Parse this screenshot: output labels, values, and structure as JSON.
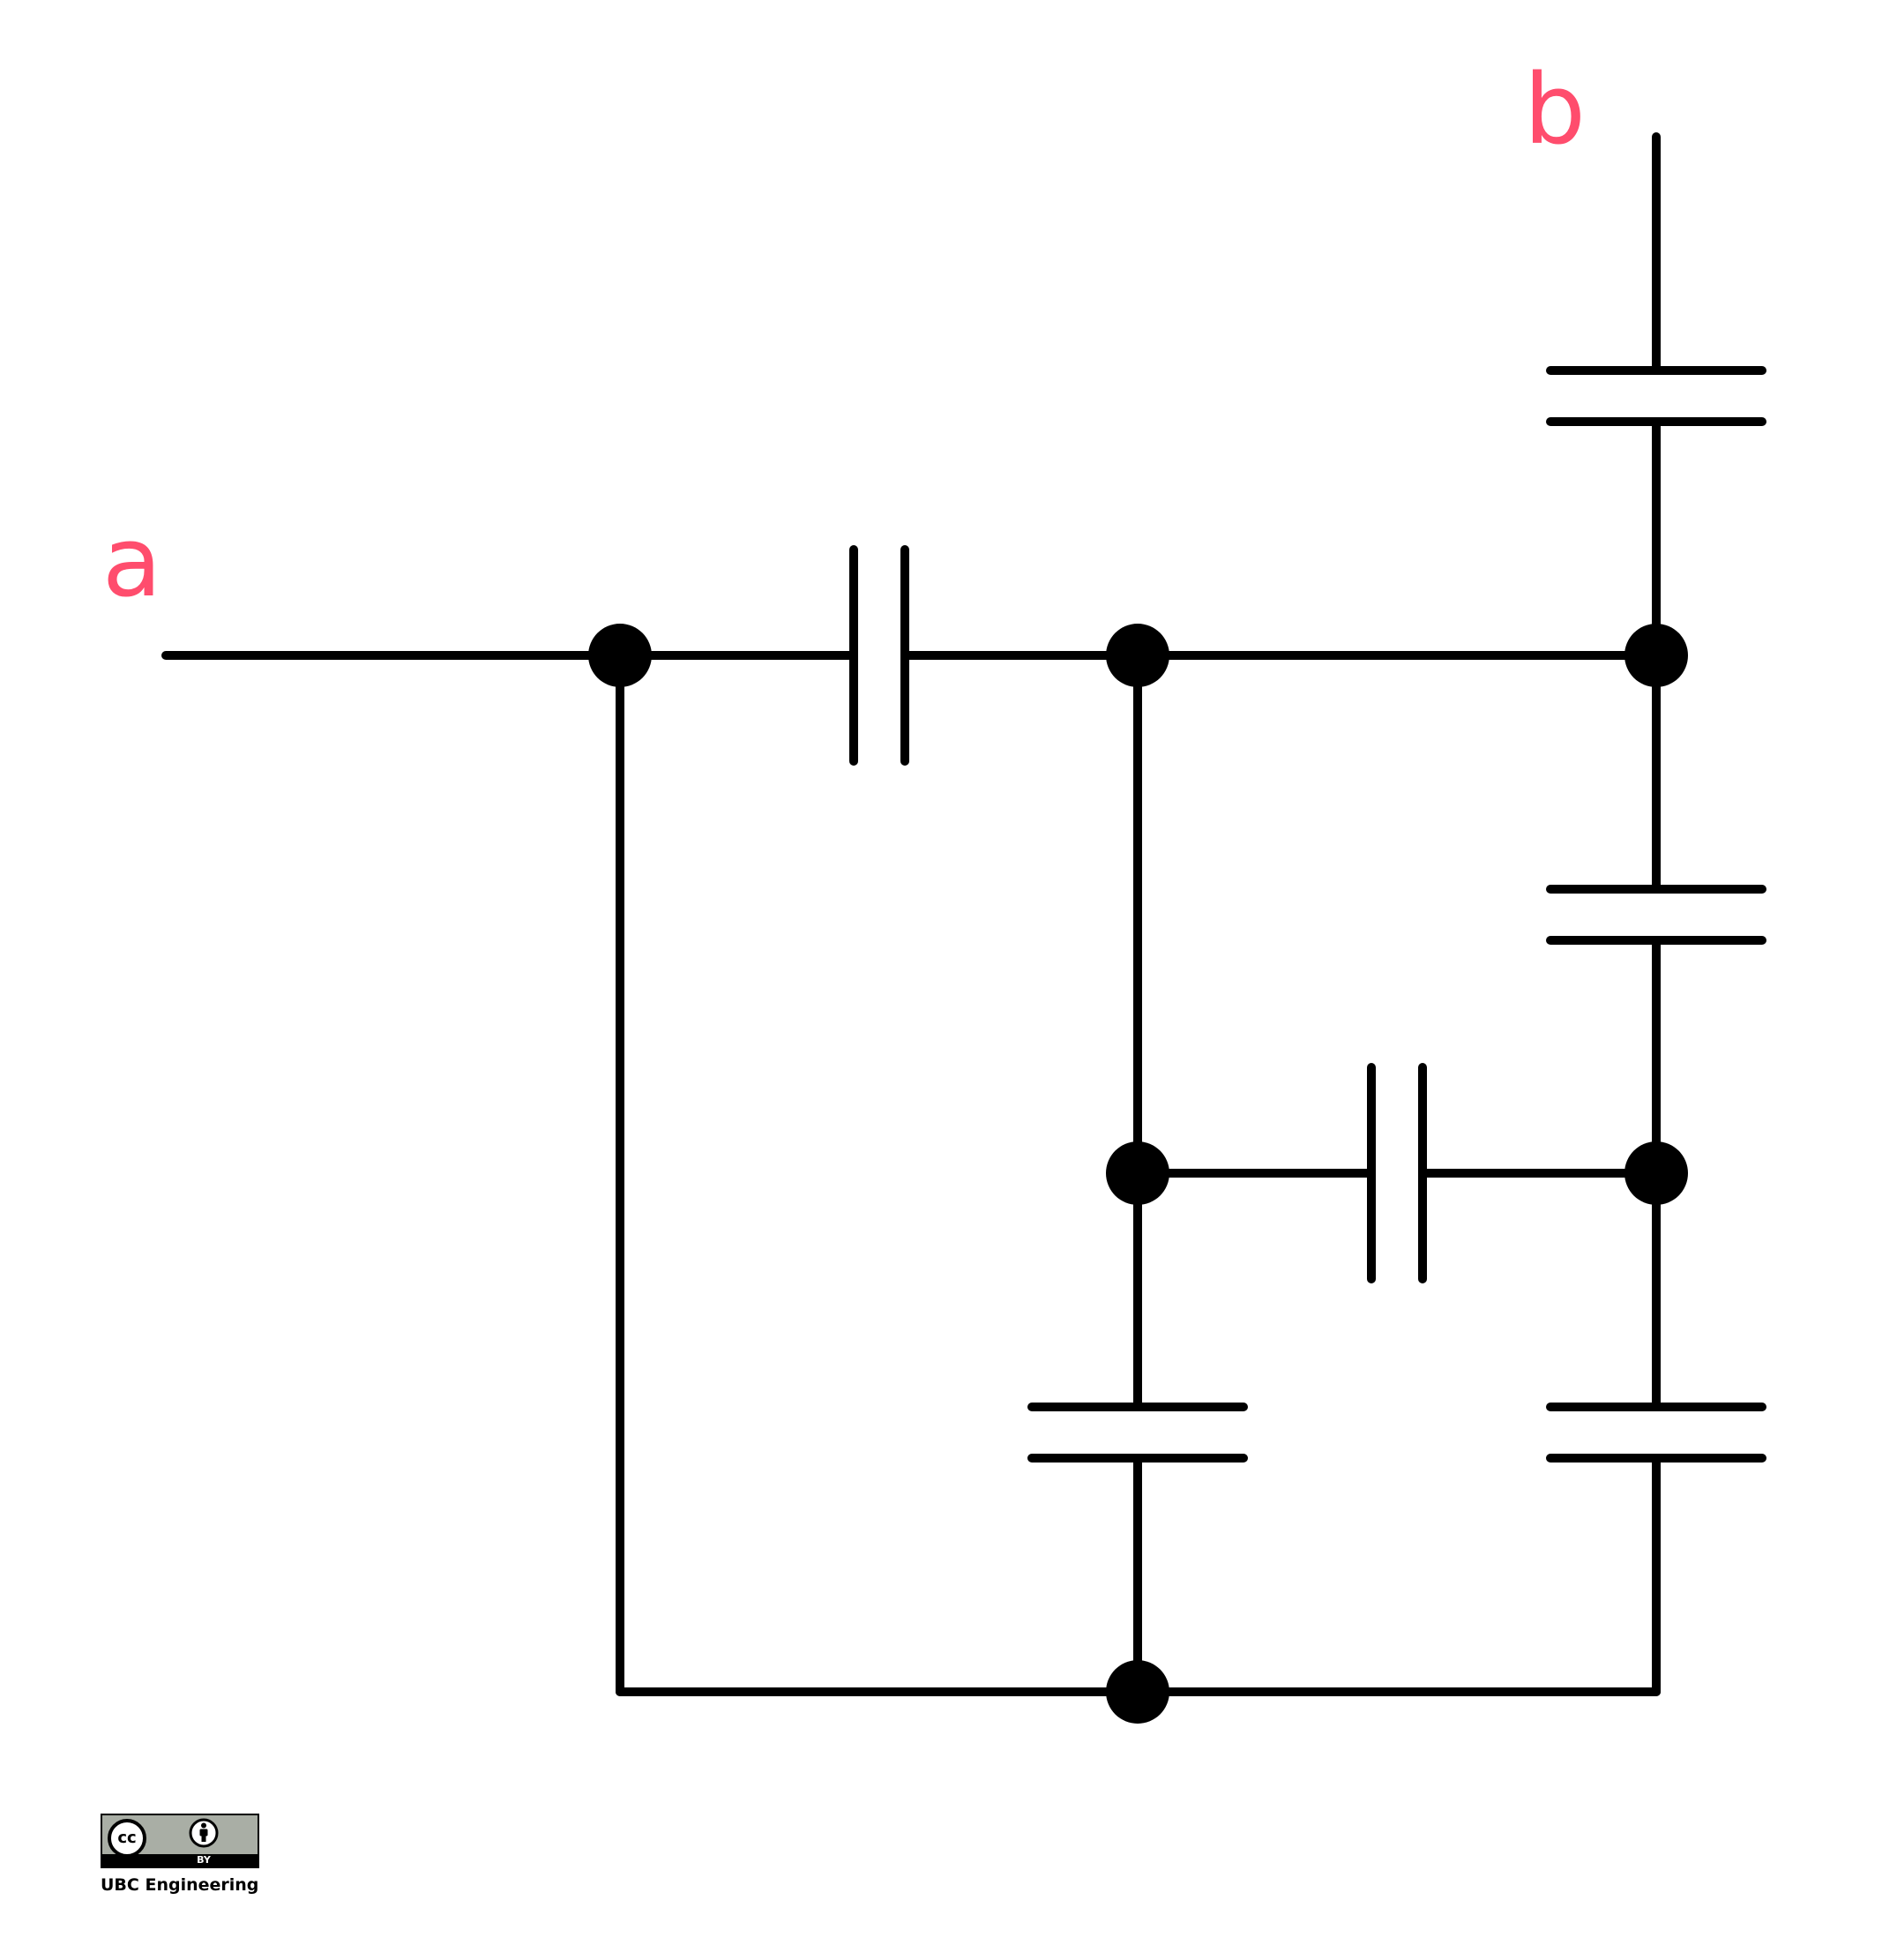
{
  "diagram": {
    "terminals": {
      "a": "a",
      "b": "b"
    },
    "label_color": "#ff4d6d",
    "wire_color": "#000000"
  },
  "license": {
    "cc_symbol": "cc",
    "by_text": "BY",
    "credit": "UBC Engineering",
    "icon": "creative-commons-by-icon"
  }
}
